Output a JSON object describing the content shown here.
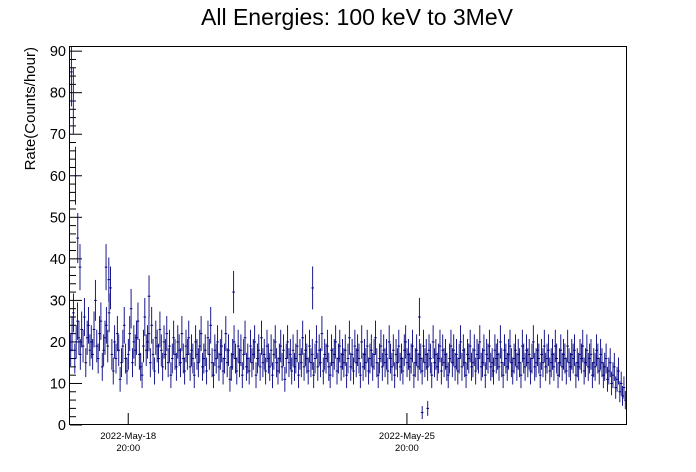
{
  "chart_data": {
    "type": "scatter",
    "title": "All Energies:  100 keV to 3MeV",
    "ylabel": "Rate(Counts/hour)",
    "xlabel": "",
    "ylim": [
      0,
      91
    ],
    "xlim_days": [
      0,
      20.05
    ],
    "y_ticks": [
      "0",
      "10",
      "20",
      "30",
      "40",
      "50",
      "60",
      "70",
      "80",
      "90"
    ],
    "x_ticks": [
      {
        "line1": "2022-May-18",
        "line2": "20:00",
        "offset_days": 2.1
      },
      {
        "line1": "2022-May-25",
        "line2": "20:00",
        "offset_days": 12.15
      }
    ],
    "marker_color": "#000080",
    "error_bars": true,
    "grid": false,
    "series": [
      {
        "values": [
          18,
          22,
          27,
          16,
          20,
          25,
          21,
          17,
          23,
          19,
          26,
          15,
          21,
          24,
          18,
          20,
          17,
          23,
          30,
          19,
          16,
          22,
          25,
          14,
          18,
          21,
          24,
          19,
          27,
          33,
          17,
          13,
          20,
          16,
          22,
          18,
          11,
          15,
          19,
          24,
          16,
          13,
          17,
          22,
          28,
          15,
          20,
          18,
          21,
          25,
          17,
          14,
          12,
          19,
          26,
          18,
          20,
          22,
          15,
          24,
          17,
          13,
          21,
          19,
          16,
          23,
          18,
          14,
          20,
          17,
          22,
          15,
          19,
          12,
          16,
          21,
          17,
          14,
          20,
          18,
          15,
          22,
          16,
          13,
          19,
          17,
          21,
          14,
          18,
          16,
          12,
          20,
          17,
          15,
          19,
          22,
          14,
          16,
          18,
          13,
          21,
          17,
          24,
          15,
          12,
          18,
          16,
          20,
          14,
          17,
          19,
          13,
          16,
          22,
          15,
          18,
          11,
          14,
          17,
          20,
          16,
          13,
          19,
          15,
          18,
          12,
          17,
          21,
          14,
          16,
          13,
          19,
          15,
          17,
          20,
          12,
          16,
          18,
          14,
          21,
          15,
          17,
          13,
          19,
          16,
          14,
          18,
          12,
          17,
          20,
          15,
          13,
          16,
          19,
          14,
          18,
          11,
          16,
          20,
          15,
          17,
          13,
          18,
          14,
          16,
          19,
          12,
          17,
          15,
          21,
          14,
          18,
          16,
          13,
          19,
          15,
          17,
          12,
          16,
          20,
          14,
          18,
          15,
          22,
          13,
          17,
          16,
          19,
          14,
          12,
          18,
          15,
          17,
          20,
          13,
          16,
          19,
          14,
          17,
          15,
          18,
          12,
          16,
          21,
          14,
          17,
          13,
          19,
          15,
          18,
          16,
          12,
          20,
          14,
          17,
          15,
          19,
          13,
          16,
          18,
          14,
          17,
          21,
          15,
          12,
          16,
          19,
          14,
          18,
          15,
          17,
          13,
          20,
          16,
          14,
          18,
          12,
          17,
          15,
          19,
          14,
          16,
          13,
          18,
          20,
          15,
          17,
          14,
          16,
          19,
          12,
          15,
          18,
          14,
          17,
          16,
          13,
          19,
          15,
          17,
          14,
          18,
          16,
          12,
          20,
          15,
          17,
          14,
          16,
          19,
          13,
          18,
          15,
          17,
          14,
          12,
          16,
          19,
          15,
          18,
          14,
          17,
          13,
          16,
          20,
          14,
          18,
          15,
          12,
          17,
          16,
          19,
          14,
          15,
          18,
          13,
          17,
          16,
          20,
          14,
          15,
          18,
          12,
          17,
          16,
          19,
          14,
          15,
          13,
          18,
          16,
          17,
          14,
          20,
          15,
          12,
          18,
          16,
          14,
          17,
          19,
          15,
          13,
          16,
          18,
          14,
          17,
          15,
          12,
          19,
          16,
          14,
          18,
          15,
          17,
          13,
          16,
          20,
          14,
          15,
          18,
          16,
          12,
          17,
          15,
          19,
          14,
          16,
          18,
          13,
          15,
          17,
          14,
          19,
          16,
          12,
          15,
          18,
          14,
          17,
          16,
          13,
          19,
          15,
          14,
          17,
          16,
          18,
          12,
          15,
          14,
          17,
          16,
          19,
          13,
          15,
          18,
          14,
          16,
          17,
          12,
          15,
          14,
          18,
          16,
          13,
          17,
          15,
          12,
          14,
          16,
          11,
          13,
          15,
          10,
          12,
          14,
          9,
          11,
          13,
          8,
          10,
          7,
          9,
          6
        ]
      }
    ],
    "outliers": [
      {
        "day": 0.05,
        "value": 85
      },
      {
        "day": 0.12,
        "value": 78
      },
      {
        "day": 0.2,
        "value": 60
      },
      {
        "day": 0.28,
        "value": 45
      },
      {
        "day": 0.36,
        "value": 38
      },
      {
        "day": 1.3,
        "value": 38
      },
      {
        "day": 1.4,
        "value": 35
      },
      {
        "day": 2.85,
        "value": 31
      },
      {
        "day": 5.9,
        "value": 32
      },
      {
        "day": 8.75,
        "value": 33
      },
      {
        "day": 12.7,
        "value": 3
      },
      {
        "day": 12.9,
        "value": 4
      },
      {
        "day": 12.6,
        "value": 26
      }
    ]
  }
}
